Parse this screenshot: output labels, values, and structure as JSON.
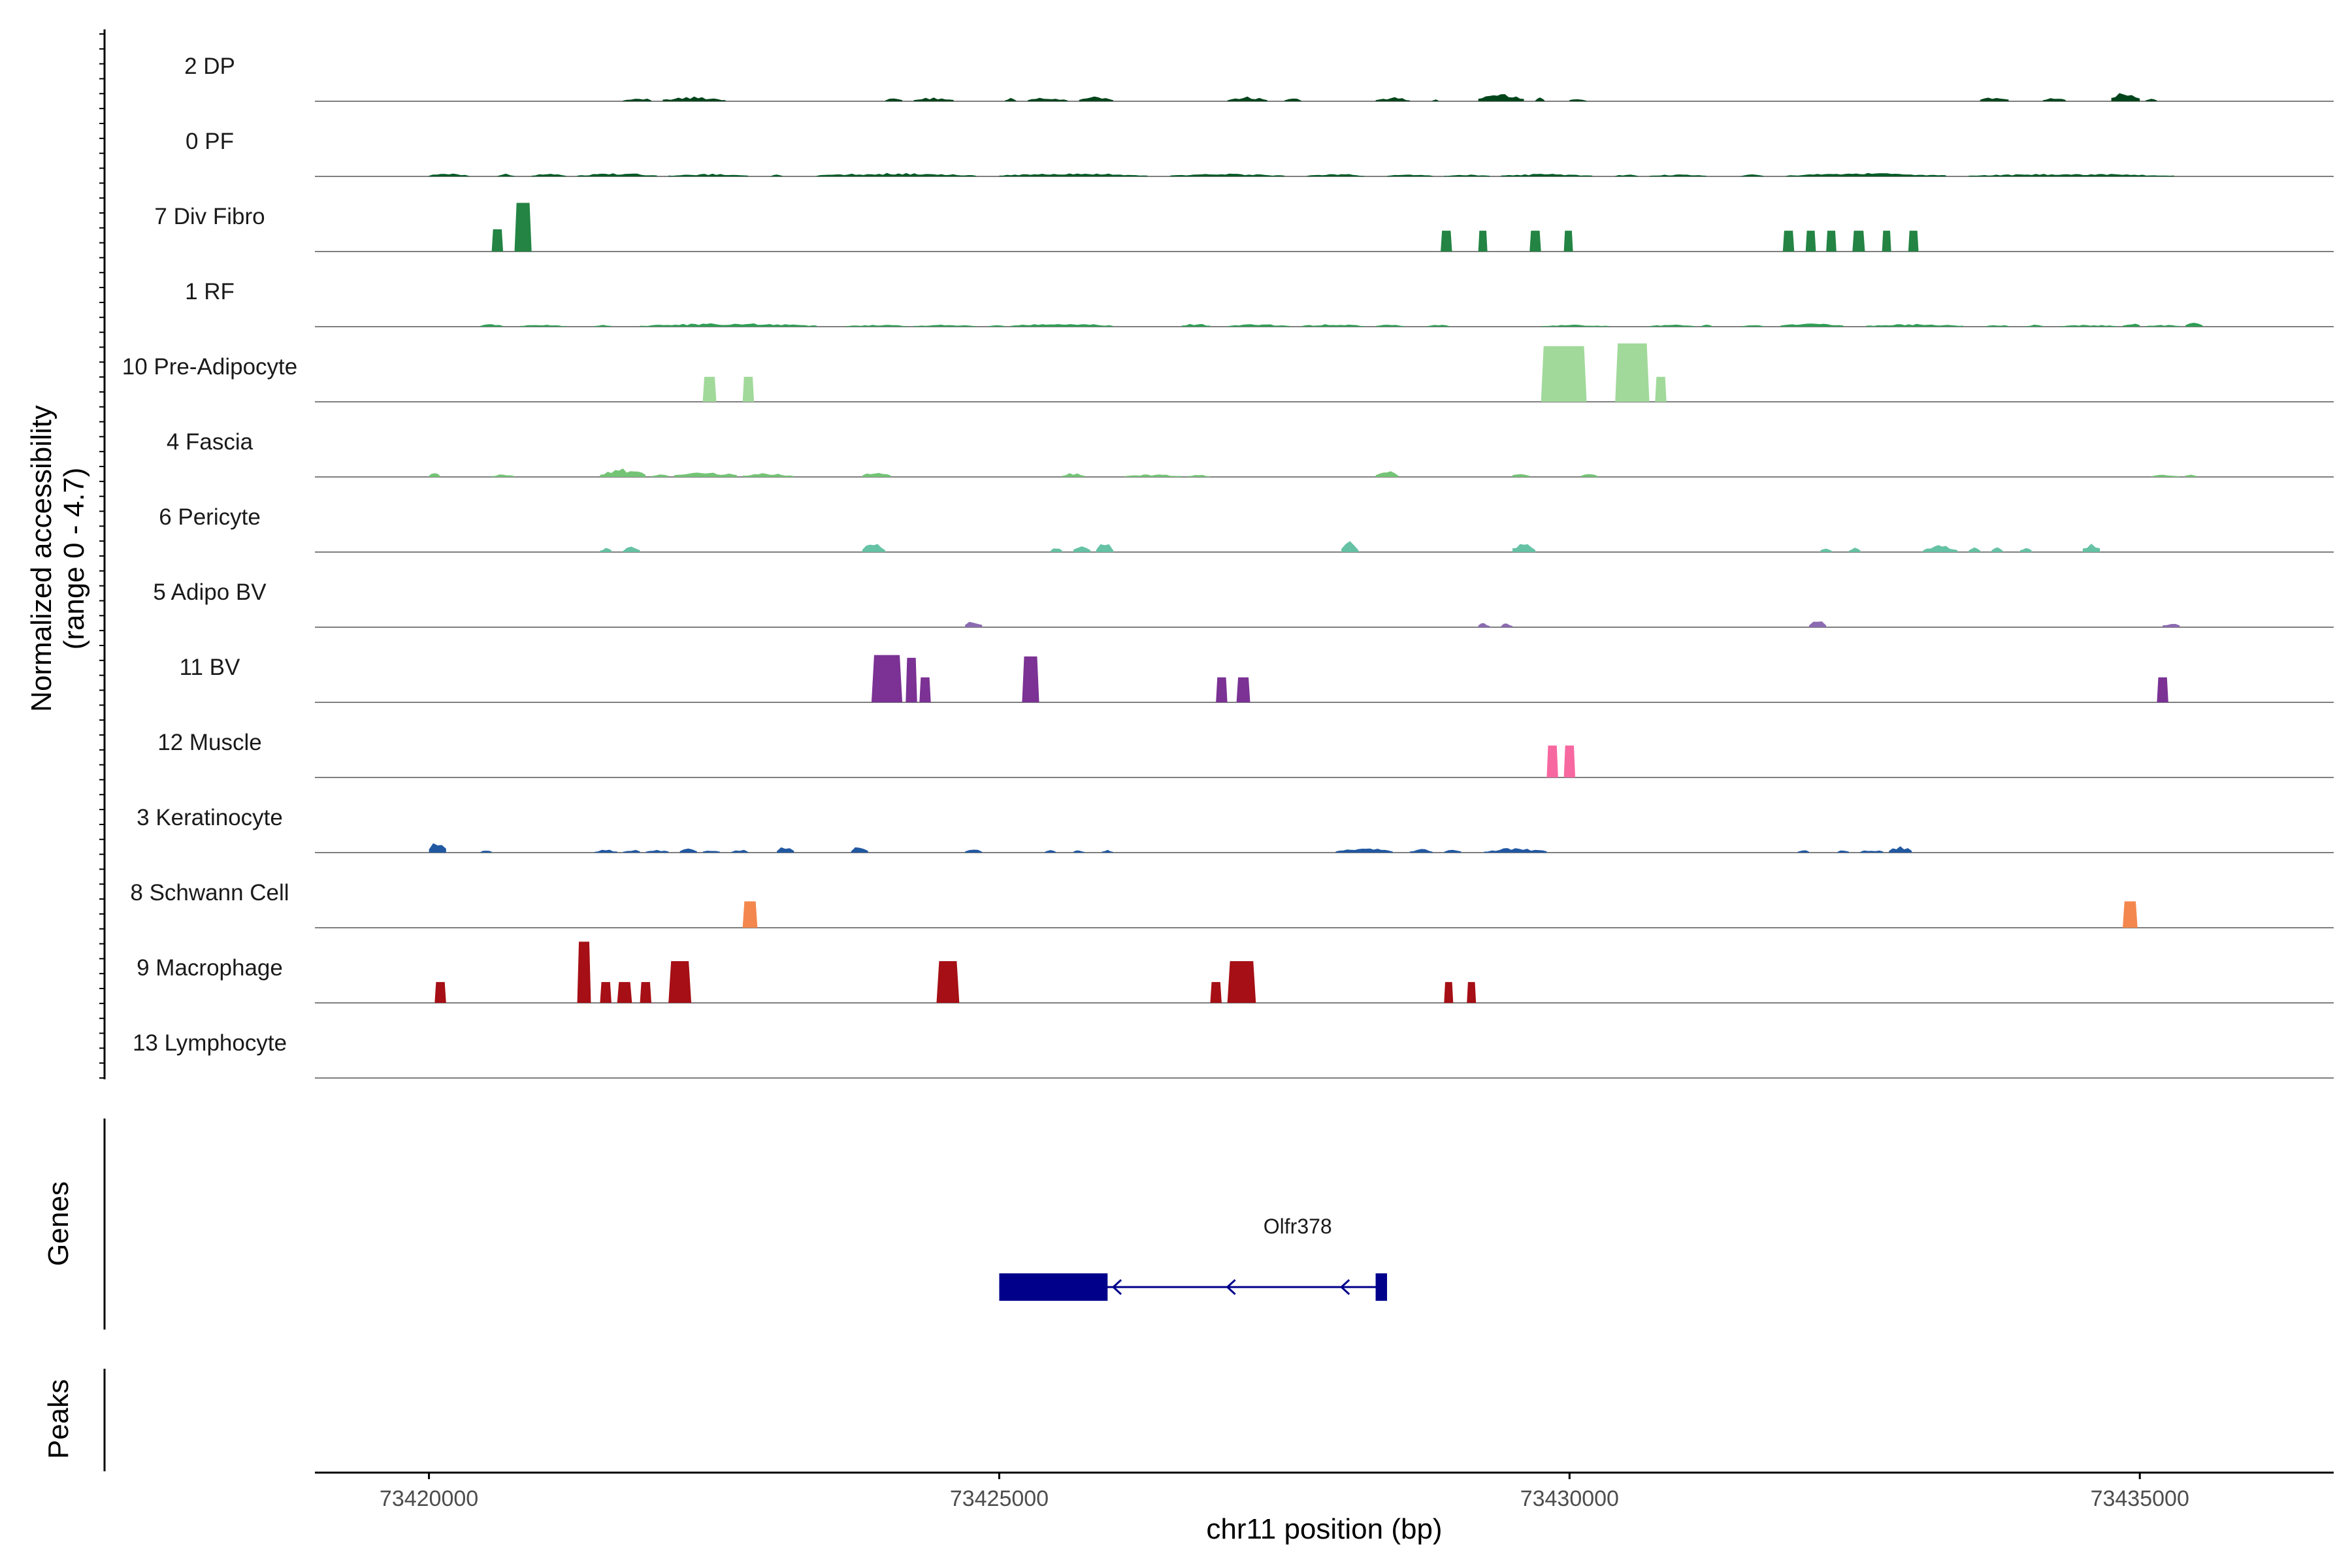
{
  "chart_data": {
    "type": "area",
    "title": "",
    "xlabel": "chr11 position (bp)",
    "ylabel_line1": "Normalized accessibility",
    "ylabel_line2": "(range 0 - 4.7)",
    "xlim": [
      73419000,
      73436700
    ],
    "ylim": [
      0,
      4.7
    ],
    "x_ticks": [
      73420000,
      73425000,
      73430000,
      73435000
    ],
    "x_tick_labels": [
      "73420000",
      "73425000",
      "73430000",
      "73435000"
    ],
    "panel_labels": {
      "genes": "Genes",
      "peaks": "Peaks"
    },
    "tracks": [
      {
        "name": "2 DP",
        "color": "#00441b",
        "style": "dense",
        "regions": [
          [
            73421700,
            73421950,
            0.3
          ],
          [
            73422050,
            73422600,
            0.35
          ],
          [
            73424000,
            73424150,
            0.3
          ],
          [
            73424250,
            73424600,
            0.3
          ],
          [
            73425050,
            73425150,
            0.25
          ],
          [
            73425250,
            73425600,
            0.3
          ],
          [
            73425700,
            73426000,
            0.35
          ],
          [
            73427000,
            73427350,
            0.35
          ],
          [
            73427500,
            73427650,
            0.25
          ],
          [
            73428300,
            73428600,
            0.3
          ],
          [
            73428800,
            73428850,
            0.2
          ],
          [
            73429200,
            73429600,
            0.55
          ],
          [
            73429700,
            73429780,
            0.3
          ],
          [
            73430000,
            73430150,
            0.25
          ],
          [
            73433600,
            73433850,
            0.35
          ],
          [
            73434150,
            73434350,
            0.3
          ],
          [
            73434750,
            73435000,
            0.7
          ],
          [
            73435050,
            73435150,
            0.25
          ]
        ]
      },
      {
        "name": "0 PF",
        "color": "#005a26",
        "style": "dense",
        "regions": [
          [
            73420000,
            73420350,
            0.25
          ],
          [
            73420600,
            73420750,
            0.2
          ],
          [
            73420900,
            73421200,
            0.2
          ],
          [
            73421300,
            73422000,
            0.25
          ],
          [
            73422100,
            73422800,
            0.2
          ],
          [
            73423000,
            73423100,
            0.2
          ],
          [
            73423400,
            73424800,
            0.25
          ],
          [
            73425000,
            73426300,
            0.25
          ],
          [
            73426500,
            73427500,
            0.2
          ],
          [
            73427700,
            73428200,
            0.2
          ],
          [
            73428400,
            73428800,
            0.15
          ],
          [
            73428900,
            73429300,
            0.15
          ],
          [
            73429400,
            73430200,
            0.2
          ],
          [
            73430400,
            73430600,
            0.15
          ],
          [
            73430700,
            73431200,
            0.15
          ],
          [
            73431500,
            73431700,
            0.15
          ],
          [
            73431900,
            73433300,
            0.25
          ],
          [
            73433500,
            73435300,
            0.2
          ]
        ]
      },
      {
        "name": "7 Div Fibro",
        "color": "#238443",
        "style": "blocks",
        "regions": [
          [
            73420550,
            73420650,
            1.6
          ],
          [
            73420750,
            73420900,
            3.5
          ],
          [
            73428870,
            73428970,
            1.5
          ],
          [
            73429200,
            73429280,
            1.5
          ],
          [
            73429650,
            73429750,
            1.5
          ],
          [
            73429950,
            73430030,
            1.5
          ],
          [
            73431870,
            73431970,
            1.5
          ],
          [
            73432070,
            73432160,
            1.5
          ],
          [
            73432250,
            73432340,
            1.5
          ],
          [
            73432480,
            73432590,
            1.5
          ],
          [
            73432740,
            73432820,
            1.5
          ],
          [
            73432970,
            73433060,
            1.5
          ]
        ]
      },
      {
        "name": "1 RF",
        "color": "#2f9e55",
        "style": "dense",
        "regions": [
          [
            73420450,
            73420650,
            0.2
          ],
          [
            73420800,
            73421200,
            0.15
          ],
          [
            73421450,
            73421600,
            0.15
          ],
          [
            73421850,
            73423400,
            0.25
          ],
          [
            73423650,
            73424200,
            0.15
          ],
          [
            73424250,
            73424800,
            0.15
          ],
          [
            73424900,
            73425050,
            0.15
          ],
          [
            73425100,
            73426000,
            0.25
          ],
          [
            73426600,
            73426850,
            0.25
          ],
          [
            73427000,
            73427550,
            0.2
          ],
          [
            73427650,
            73428200,
            0.2
          ],
          [
            73428300,
            73428550,
            0.15
          ],
          [
            73428750,
            73428950,
            0.15
          ],
          [
            73429750,
            73430350,
            0.15
          ],
          [
            73430700,
            73431100,
            0.15
          ],
          [
            73431150,
            73431250,
            0.15
          ],
          [
            73431500,
            73431700,
            0.15
          ],
          [
            73431850,
            73432400,
            0.25
          ],
          [
            73432600,
            73433450,
            0.2
          ],
          [
            73433650,
            73433850,
            0.15
          ],
          [
            73434000,
            73434150,
            0.15
          ],
          [
            73434300,
            73434800,
            0.15
          ],
          [
            73434850,
            73435000,
            0.3
          ],
          [
            73435050,
            73435350,
            0.15
          ],
          [
            73435400,
            73435550,
            0.3
          ]
        ]
      },
      {
        "name": "10 Pre-Adipocyte",
        "color": "#a1d99b",
        "style": "blocks",
        "regions": [
          [
            73422400,
            73422520,
            1.8
          ],
          [
            73422750,
            73422850,
            1.8
          ],
          [
            73429750,
            73430150,
            4.0
          ],
          [
            73430400,
            73430700,
            4.2
          ],
          [
            73430750,
            73430850,
            1.8
          ]
        ]
      },
      {
        "name": "4 Fascia",
        "color": "#74c476",
        "style": "dense",
        "regions": [
          [
            73420000,
            73420100,
            0.3
          ],
          [
            73420550,
            73420750,
            0.2
          ],
          [
            73421500,
            73421900,
            0.7
          ],
          [
            73421950,
            73422100,
            0.25
          ],
          [
            73422150,
            73422700,
            0.4
          ],
          [
            73422750,
            73423200,
            0.3
          ],
          [
            73423800,
            73424050,
            0.5
          ],
          [
            73425550,
            73425750,
            0.3
          ],
          [
            73426100,
            73426600,
            0.2
          ],
          [
            73426650,
            73426850,
            0.2
          ],
          [
            73428300,
            73428500,
            0.5
          ],
          [
            73429500,
            73429650,
            0.4
          ],
          [
            73430100,
            73430250,
            0.3
          ],
          [
            73435100,
            73435350,
            0.2
          ],
          [
            73435400,
            73435500,
            0.3
          ]
        ]
      },
      {
        "name": "6 Pericyte",
        "color": "#66c2a4",
        "style": "dense",
        "regions": [
          [
            73421500,
            73421600,
            0.4
          ],
          [
            73421700,
            73421850,
            0.4
          ],
          [
            73423800,
            73424000,
            0.8
          ],
          [
            73425450,
            73425550,
            0.4
          ],
          [
            73425650,
            73425800,
            0.5
          ],
          [
            73425850,
            73426000,
            0.7
          ],
          [
            73428000,
            73428150,
            0.8
          ],
          [
            73429500,
            73429700,
            0.8
          ],
          [
            73432200,
            73432300,
            0.4
          ],
          [
            73432450,
            73432550,
            0.4
          ],
          [
            73433100,
            73433400,
            0.6
          ],
          [
            73433500,
            73433600,
            0.4
          ],
          [
            73433700,
            73433800,
            0.4
          ],
          [
            73433950,
            73434050,
            0.4
          ],
          [
            73434500,
            73434650,
            0.8
          ]
        ]
      },
      {
        "name": "5 Adipo BV",
        "color": "#8c6bb1",
        "style": "dense",
        "regions": [
          [
            73424700,
            73424850,
            0.6
          ],
          [
            73429200,
            73429300,
            0.35
          ],
          [
            73429400,
            73429500,
            0.35
          ],
          [
            73432100,
            73432250,
            0.6
          ],
          [
            73435200,
            73435350,
            0.4
          ]
        ]
      },
      {
        "name": "11 BV",
        "color": "#7b3294",
        "style": "blocks",
        "regions": [
          [
            73423880,
            73424150,
            3.4
          ],
          [
            73424180,
            73424280,
            3.2
          ],
          [
            73424300,
            73424400,
            1.8
          ],
          [
            73425200,
            73425350,
            3.3
          ],
          [
            73426900,
            73427000,
            1.8
          ],
          [
            73427080,
            73427200,
            1.8
          ],
          [
            73435150,
            73435250,
            1.8
          ]
        ]
      },
      {
        "name": "12 Muscle",
        "color": "#f768a1",
        "style": "blocks",
        "regions": [
          [
            73429800,
            73429900,
            2.3
          ],
          [
            73429950,
            73430050,
            2.3
          ]
        ]
      },
      {
        "name": "3 Keratinocyte",
        "color": "#2158a1",
        "style": "dense",
        "regions": [
          [
            73420000,
            73420150,
            0.9
          ],
          [
            73420450,
            73420550,
            0.2
          ],
          [
            73421450,
            73421650,
            0.25
          ],
          [
            73421700,
            73421850,
            0.25
          ],
          [
            73421900,
            73422100,
            0.25
          ],
          [
            73422200,
            73422350,
            0.3
          ],
          [
            73422400,
            73422550,
            0.25
          ],
          [
            73422650,
            73422800,
            0.25
          ],
          [
            73423050,
            73423200,
            0.5
          ],
          [
            73423700,
            73423850,
            0.5
          ],
          [
            73424700,
            73424850,
            0.25
          ],
          [
            73425400,
            73425500,
            0.2
          ],
          [
            73425650,
            73425750,
            0.2
          ],
          [
            73425900,
            73426000,
            0.2
          ],
          [
            73427950,
            73428450,
            0.35
          ],
          [
            73428600,
            73428800,
            0.3
          ],
          [
            73428900,
            73429050,
            0.25
          ],
          [
            73429250,
            73429800,
            0.35
          ],
          [
            73432000,
            73432100,
            0.2
          ],
          [
            73432350,
            73432450,
            0.2
          ],
          [
            73432550,
            73432750,
            0.25
          ],
          [
            73432800,
            73433000,
            0.5
          ]
        ]
      },
      {
        "name": "8 Schwann Cell",
        "color": "#f4874d",
        "style": "blocks",
        "regions": [
          [
            73422750,
            73422880,
            1.9
          ],
          [
            73434850,
            73434980,
            1.9
          ]
        ]
      },
      {
        "name": "9 Macrophage",
        "color": "#a50f15",
        "style": "blocks",
        "regions": [
          [
            73420050,
            73420150,
            1.5
          ],
          [
            73421300,
            73421420,
            4.4
          ],
          [
            73421500,
            73421600,
            1.5
          ],
          [
            73421650,
            73421780,
            1.5
          ],
          [
            73421850,
            73421950,
            1.5
          ],
          [
            73422100,
            73422300,
            3.0
          ],
          [
            73424450,
            73424650,
            3.0
          ],
          [
            73426850,
            73426950,
            1.5
          ],
          [
            73427000,
            73427250,
            3.0
          ],
          [
            73428900,
            73428980,
            1.5
          ],
          [
            73429100,
            73429180,
            1.5
          ]
        ]
      },
      {
        "name": "13 Lymphocyte",
        "color": "#666666",
        "style": "blocks",
        "regions": []
      }
    ],
    "genes": [
      {
        "name": "Olfr378",
        "color": "#00008b",
        "strand": "-",
        "start": 73425000,
        "end": 73428400,
        "exons": [
          [
            73425000,
            73425950
          ],
          [
            73428300,
            73428400
          ]
        ],
        "arrows": [
          73426000,
          73427000,
          73428000
        ]
      }
    ],
    "peaks": []
  }
}
